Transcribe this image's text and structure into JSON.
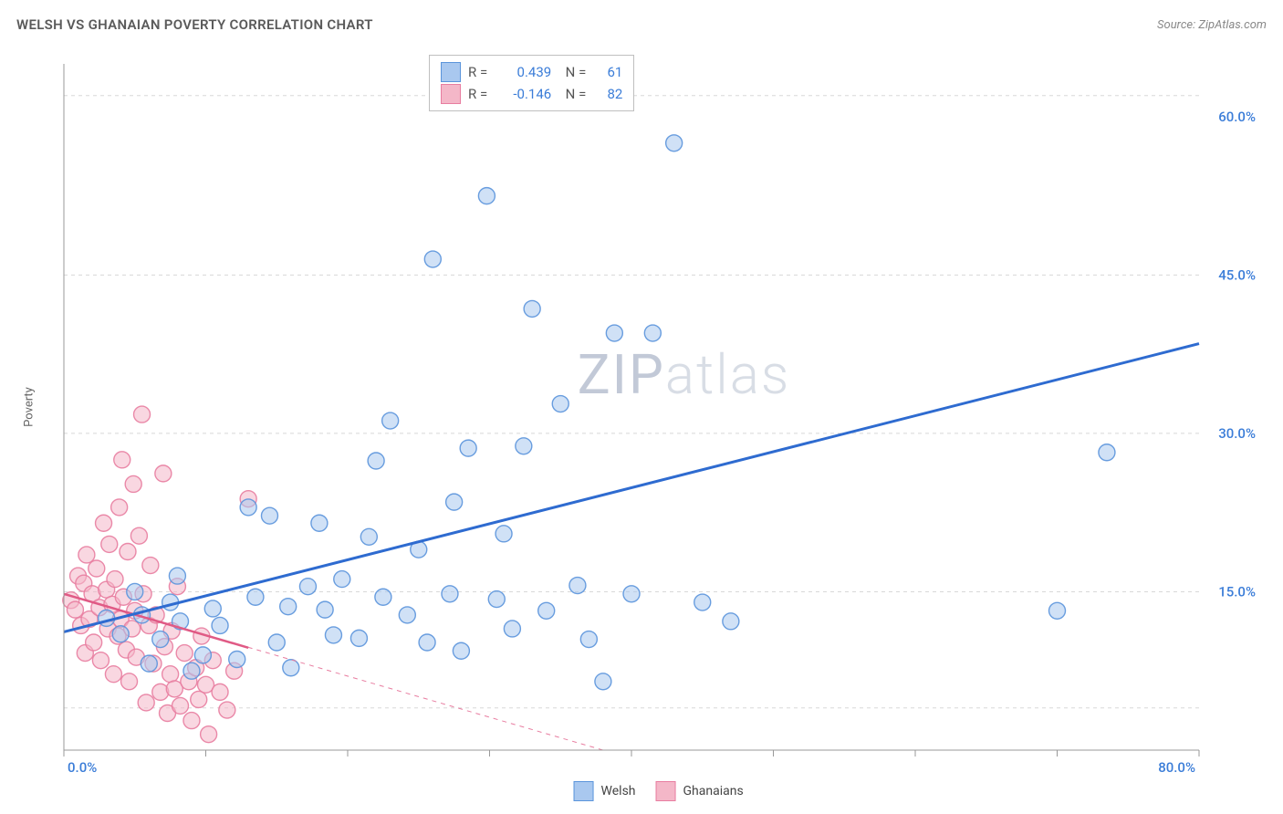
{
  "title": "WELSH VS GHANAIAN POVERTY CORRELATION CHART",
  "source": "Source: ZipAtlas.com",
  "ylabel": "Poverty",
  "watermark": {
    "zip": "ZIP",
    "atlas": "atlas"
  },
  "chart": {
    "type": "scatter",
    "xlim": [
      0,
      80
    ],
    "ylim": [
      0,
      65
    ],
    "x_ticks": [
      0,
      10,
      20,
      30,
      40,
      50,
      60,
      70,
      80
    ],
    "x_tick_labels": {
      "0": "0.0%",
      "80": "80.0%"
    },
    "y_ticks": [
      15,
      30,
      45,
      60
    ],
    "y_tick_labels": {
      "15": "15.0%",
      "30": "30.0%",
      "45": "45.0%",
      "60": "60.0%"
    },
    "y_gridlines": [
      4,
      15,
      30,
      45,
      62
    ],
    "background_color": "#ffffff",
    "grid_color": "#d8d8d8",
    "axis_color": "#999999",
    "marker_radius": 9,
    "marker_opacity": 0.55,
    "marker_stroke_opacity": 0.9,
    "marker_stroke_width": 1.4,
    "series": [
      {
        "name": "Welsh",
        "color_fill": "#a9c8ef",
        "color_stroke": "#5a94db",
        "R": "0.439",
        "N": "61",
        "trend": {
          "x1": 0,
          "y1": 11.2,
          "x2": 80,
          "y2": 38.5,
          "stroke": "#2e6bd0",
          "width": 3,
          "dash": "none"
        },
        "points": [
          [
            3,
            12.5
          ],
          [
            4,
            11
          ],
          [
            5,
            15
          ],
          [
            5.5,
            12.8
          ],
          [
            6,
            8.2
          ],
          [
            6.8,
            10.5
          ],
          [
            7.5,
            14
          ],
          [
            8,
            16.5
          ],
          [
            8.2,
            12.2
          ],
          [
            9,
            7.5
          ],
          [
            9.8,
            9
          ],
          [
            10.5,
            13.4
          ],
          [
            11,
            11.8
          ],
          [
            12.2,
            8.6
          ],
          [
            13,
            23
          ],
          [
            13.5,
            14.5
          ],
          [
            14.5,
            22.2
          ],
          [
            15,
            10.2
          ],
          [
            15.8,
            13.6
          ],
          [
            16,
            7.8
          ],
          [
            17.2,
            15.5
          ],
          [
            18,
            21.5
          ],
          [
            18.4,
            13.3
          ],
          [
            19,
            10.9
          ],
          [
            19.6,
            16.2
          ],
          [
            20.8,
            10.6
          ],
          [
            21.5,
            20.2
          ],
          [
            22,
            27.4
          ],
          [
            22.5,
            14.5
          ],
          [
            23,
            31.2
          ],
          [
            24.2,
            12.8
          ],
          [
            25,
            19
          ],
          [
            25.6,
            10.2
          ],
          [
            26,
            46.5
          ],
          [
            27.2,
            14.8
          ],
          [
            27.5,
            23.5
          ],
          [
            28,
            9.4
          ],
          [
            28.5,
            28.6
          ],
          [
            29.8,
            52.5
          ],
          [
            30.5,
            14.3
          ],
          [
            31,
            20.5
          ],
          [
            31.6,
            11.5
          ],
          [
            32.4,
            28.8
          ],
          [
            33,
            41.8
          ],
          [
            34,
            13.2
          ],
          [
            35,
            32.8
          ],
          [
            36.2,
            15.6
          ],
          [
            37,
            10.5
          ],
          [
            38,
            6.5
          ],
          [
            38.8,
            39.5
          ],
          [
            40,
            14.8
          ],
          [
            41.5,
            39.5
          ],
          [
            43,
            57.5
          ],
          [
            45,
            14
          ],
          [
            47,
            12.2
          ],
          [
            70,
            13.2
          ],
          [
            73.5,
            28.2
          ]
        ]
      },
      {
        "name": "Ghanaians",
        "color_fill": "#f4b7c8",
        "color_stroke": "#e87da0",
        "R": "-0.146",
        "N": "82",
        "trend": {
          "x1": 0,
          "y1": 14.8,
          "x2": 38,
          "y2": 0,
          "stroke": "#e87da0",
          "width": 1,
          "dash": "5 5"
        },
        "trend_solid": {
          "x1": 0,
          "y1": 14.8,
          "x2": 13,
          "y2": 9.7,
          "stroke": "#e05a85",
          "width": 2.5
        },
        "points": [
          [
            0.5,
            14.2
          ],
          [
            0.8,
            13.3
          ],
          [
            1,
            16.5
          ],
          [
            1.2,
            11.8
          ],
          [
            1.4,
            15.8
          ],
          [
            1.5,
            9.2
          ],
          [
            1.6,
            18.5
          ],
          [
            1.8,
            12.4
          ],
          [
            2,
            14.8
          ],
          [
            2.1,
            10.2
          ],
          [
            2.3,
            17.2
          ],
          [
            2.5,
            13.5
          ],
          [
            2.6,
            8.5
          ],
          [
            2.8,
            21.5
          ],
          [
            3,
            15.2
          ],
          [
            3.1,
            11.5
          ],
          [
            3.2,
            19.5
          ],
          [
            3.4,
            13.8
          ],
          [
            3.5,
            7.2
          ],
          [
            3.6,
            16.2
          ],
          [
            3.8,
            10.8
          ],
          [
            3.9,
            23
          ],
          [
            4,
            12.4
          ],
          [
            4.1,
            27.5
          ],
          [
            4.2,
            14.5
          ],
          [
            4.4,
            9.5
          ],
          [
            4.5,
            18.8
          ],
          [
            4.6,
            6.5
          ],
          [
            4.8,
            11.5
          ],
          [
            4.9,
            25.2
          ],
          [
            5,
            13.2
          ],
          [
            5.1,
            8.8
          ],
          [
            5.3,
            20.3
          ],
          [
            5.5,
            31.8
          ],
          [
            5.6,
            14.8
          ],
          [
            5.8,
            4.5
          ],
          [
            6,
            11.8
          ],
          [
            6.1,
            17.5
          ],
          [
            6.3,
            8.2
          ],
          [
            6.5,
            12.8
          ],
          [
            6.8,
            5.5
          ],
          [
            7,
            26.2
          ],
          [
            7.1,
            9.8
          ],
          [
            7.3,
            3.5
          ],
          [
            7.5,
            7.2
          ],
          [
            7.6,
            11.3
          ],
          [
            7.8,
            5.8
          ],
          [
            8,
            15.5
          ],
          [
            8.2,
            4.2
          ],
          [
            8.5,
            9.2
          ],
          [
            8.8,
            6.5
          ],
          [
            9,
            2.8
          ],
          [
            9.3,
            7.8
          ],
          [
            9.5,
            4.8
          ],
          [
            9.7,
            10.8
          ],
          [
            10,
            6.2
          ],
          [
            10.2,
            1.5
          ],
          [
            10.5,
            8.5
          ],
          [
            11,
            5.5
          ],
          [
            11.5,
            3.8
          ],
          [
            12,
            7.5
          ],
          [
            13,
            23.8
          ]
        ]
      }
    ]
  },
  "legend_stats": [
    {
      "series": 0
    },
    {
      "series": 1
    }
  ],
  "bottom_legend": [
    {
      "series": 0
    },
    {
      "series": 1
    }
  ]
}
